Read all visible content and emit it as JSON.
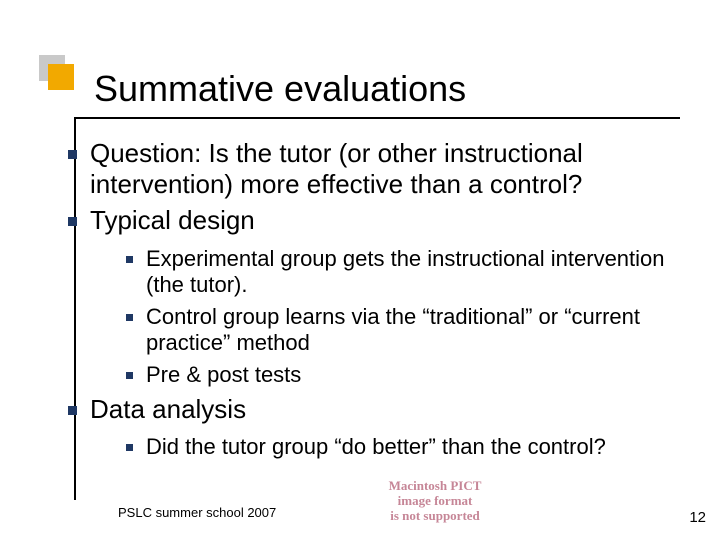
{
  "colors": {
    "grey_block": "#c9c9c9",
    "orange_block": "#f2a900",
    "rule": "#000000",
    "bullet": "#1f3864",
    "missing_image_text": "#c07a8c",
    "text": "#000000",
    "background": "#ffffff"
  },
  "title": "Summative evaluations",
  "bullets": [
    {
      "text": "Question: Is the tutor (or other instructional intervention) more effective than a control?",
      "children": []
    },
    {
      "text": "Typical design",
      "children": [
        {
          "text": "Experimental group gets the instructional intervention (the tutor)."
        },
        {
          "text": "Control group learns via the “traditional” or “current practice” method"
        },
        {
          "text": "Pre & post tests"
        }
      ]
    },
    {
      "text": "Data analysis",
      "children": [
        {
          "text": "Did the tutor group “do better” than the control?"
        }
      ]
    }
  ],
  "footer": "PSLC summer school 2007",
  "page_number": "12",
  "missing_image": {
    "line1": "Macintosh PICT",
    "line2": "image format",
    "line3": "is not supported"
  }
}
